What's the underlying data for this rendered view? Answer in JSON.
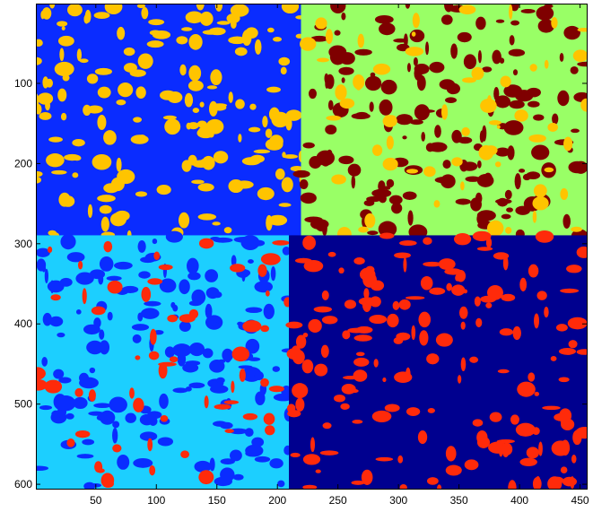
{
  "chart_data": {
    "type": "heatmap",
    "title": "",
    "xlabel": "",
    "ylabel": "",
    "xlim": [
      0.5,
      455.5
    ],
    "ylim": [
      0.5,
      605.5
    ],
    "y_reversed": true,
    "x_ticks": [
      50,
      100,
      150,
      200,
      250,
      300,
      350,
      400,
      450
    ],
    "y_ticks": [
      100,
      200,
      300,
      400,
      500,
      600
    ],
    "grid": false,
    "colorbar": false,
    "regions": [
      {
        "label": "top-left",
        "colors": [
          "#0a2cff",
          "#ffc400"
        ],
        "x_range": [
          1,
          220
        ],
        "y_range": [
          1,
          290
        ]
      },
      {
        "label": "top-right",
        "colors": [
          "#99ff66",
          "#7f0000",
          "#ffc400"
        ],
        "x_range": [
          220,
          455
        ],
        "y_range": [
          1,
          290
        ]
      },
      {
        "label": "bottom-left",
        "colors": [
          "#1ccfff",
          "#0a2cff",
          "#ff2a0a"
        ],
        "x_range": [
          1,
          210
        ],
        "y_range": [
          290,
          605
        ]
      },
      {
        "label": "bottom-right",
        "colors": [
          "#00008f",
          "#ff2a0a"
        ],
        "x_range": [
          210,
          455
        ],
        "y_range": [
          290,
          605
        ]
      }
    ]
  }
}
